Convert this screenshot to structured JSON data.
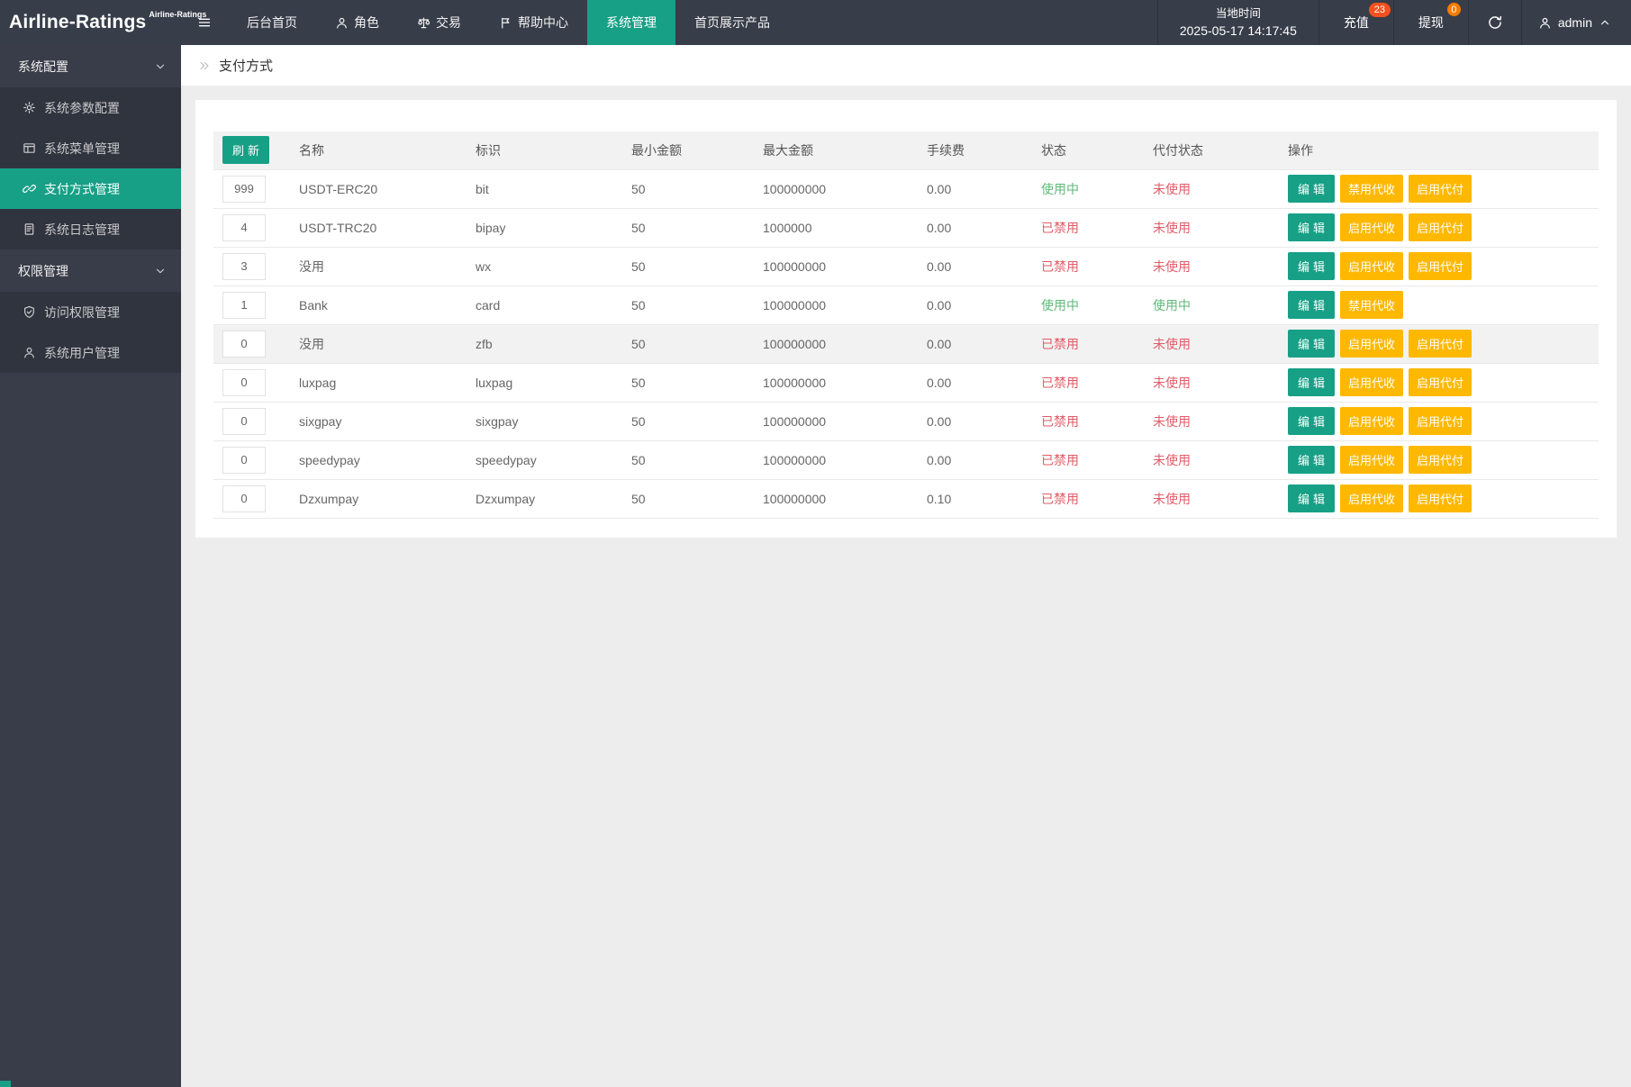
{
  "topbar": {
    "logo": "Airline-Ratings",
    "logo_super": "Airline-Ratings",
    "nav": [
      {
        "label": "后台首页",
        "icon": null,
        "active": false
      },
      {
        "label": "角色",
        "icon": "user-icon",
        "active": false
      },
      {
        "label": "交易",
        "icon": "scales-icon",
        "active": false
      },
      {
        "label": "帮助中心",
        "icon": "flag-icon",
        "active": false
      },
      {
        "label": "系统管理",
        "icon": null,
        "active": true
      },
      {
        "label": "首页展示产品",
        "icon": null,
        "active": false
      }
    ],
    "time_label": "当地时间",
    "time_value": "2025-05-17 14:17:45",
    "recharge_label": "充值",
    "recharge_badge": "23",
    "withdraw_label": "提现",
    "withdraw_badge": "0",
    "admin_name": "admin"
  },
  "sidebar": {
    "groups": [
      {
        "label": "系统配置",
        "items": [
          {
            "label": "系统参数配置",
            "icon": "gear-icon",
            "active": false
          },
          {
            "label": "系统菜单管理",
            "icon": "window-icon",
            "active": false
          },
          {
            "label": "支付方式管理",
            "icon": "link-icon",
            "active": true
          },
          {
            "label": "系统日志管理",
            "icon": "file-icon",
            "active": false
          }
        ]
      },
      {
        "label": "权限管理",
        "items": [
          {
            "label": "访问权限管理",
            "icon": "shield-icon",
            "active": false
          },
          {
            "label": "系统用户管理",
            "icon": "user-icon",
            "active": false
          }
        ]
      }
    ]
  },
  "breadcrumb": {
    "title": "支付方式"
  },
  "table": {
    "refresh_label": "刷新",
    "headers": [
      "名称",
      "标识",
      "最小金额",
      "最大金额",
      "手续费",
      "状态",
      "代付状态",
      "操作"
    ],
    "rows": [
      {
        "order": "999",
        "name": "USDT-ERC20",
        "code": "bit",
        "min": "50",
        "max": "100000000",
        "fee": "0.00",
        "status": {
          "text": "使用中",
          "state": "green"
        },
        "payout": {
          "text": "未使用",
          "state": "red"
        },
        "highlight": false,
        "actions": [
          {
            "key": "edit",
            "label": "编辑",
            "style": "teal"
          },
          {
            "key": "disable-collect",
            "label": "禁用代收",
            "style": "yellow"
          },
          {
            "key": "enable-payout",
            "label": "启用代付",
            "style": "yellow"
          }
        ]
      },
      {
        "order": "4",
        "name": "USDT-TRC20",
        "code": "bipay",
        "min": "50",
        "max": "1000000",
        "fee": "0.00",
        "status": {
          "text": "已禁用",
          "state": "red"
        },
        "payout": {
          "text": "未使用",
          "state": "red"
        },
        "highlight": false,
        "actions": [
          {
            "key": "edit",
            "label": "编辑",
            "style": "teal"
          },
          {
            "key": "enable-collect",
            "label": "启用代收",
            "style": "yellow"
          },
          {
            "key": "enable-payout",
            "label": "启用代付",
            "style": "yellow"
          }
        ]
      },
      {
        "order": "3",
        "name": "没用",
        "code": "wx",
        "min": "50",
        "max": "100000000",
        "fee": "0.00",
        "status": {
          "text": "已禁用",
          "state": "red"
        },
        "payout": {
          "text": "未使用",
          "state": "red"
        },
        "highlight": false,
        "actions": [
          {
            "key": "edit",
            "label": "编辑",
            "style": "teal"
          },
          {
            "key": "enable-collect",
            "label": "启用代收",
            "style": "yellow"
          },
          {
            "key": "enable-payout",
            "label": "启用代付",
            "style": "yellow"
          }
        ]
      },
      {
        "order": "1",
        "name": "Bank",
        "code": "card",
        "min": "50",
        "max": "100000000",
        "fee": "0.00",
        "status": {
          "text": "使用中",
          "state": "green"
        },
        "payout": {
          "text": "使用中",
          "state": "green"
        },
        "highlight": false,
        "actions": [
          {
            "key": "edit",
            "label": "编辑",
            "style": "teal"
          },
          {
            "key": "disable-collect",
            "label": "禁用代收",
            "style": "yellow"
          }
        ]
      },
      {
        "order": "0",
        "name": "没用",
        "code": "zfb",
        "min": "50",
        "max": "100000000",
        "fee": "0.00",
        "status": {
          "text": "已禁用",
          "state": "red"
        },
        "payout": {
          "text": "未使用",
          "state": "red"
        },
        "highlight": true,
        "actions": [
          {
            "key": "edit",
            "label": "编辑",
            "style": "teal"
          },
          {
            "key": "enable-collect",
            "label": "启用代收",
            "style": "yellow"
          },
          {
            "key": "enable-payout",
            "label": "启用代付",
            "style": "yellow"
          }
        ]
      },
      {
        "order": "0",
        "name": "luxpag",
        "code": "luxpag",
        "min": "50",
        "max": "100000000",
        "fee": "0.00",
        "status": {
          "text": "已禁用",
          "state": "red"
        },
        "payout": {
          "text": "未使用",
          "state": "red"
        },
        "highlight": false,
        "actions": [
          {
            "key": "edit",
            "label": "编辑",
            "style": "teal"
          },
          {
            "key": "enable-collect",
            "label": "启用代收",
            "style": "yellow"
          },
          {
            "key": "enable-payout",
            "label": "启用代付",
            "style": "yellow"
          }
        ]
      },
      {
        "order": "0",
        "name": "sixgpay",
        "code": "sixgpay",
        "min": "50",
        "max": "100000000",
        "fee": "0.00",
        "status": {
          "text": "已禁用",
          "state": "red"
        },
        "payout": {
          "text": "未使用",
          "state": "red"
        },
        "highlight": false,
        "actions": [
          {
            "key": "edit",
            "label": "编辑",
            "style": "teal"
          },
          {
            "key": "enable-collect",
            "label": "启用代收",
            "style": "yellow"
          },
          {
            "key": "enable-payout",
            "label": "启用代付",
            "style": "yellow"
          }
        ]
      },
      {
        "order": "0",
        "name": "speedypay",
        "code": "speedypay",
        "min": "50",
        "max": "100000000",
        "fee": "0.00",
        "status": {
          "text": "已禁用",
          "state": "red"
        },
        "payout": {
          "text": "未使用",
          "state": "red"
        },
        "highlight": false,
        "actions": [
          {
            "key": "edit",
            "label": "编辑",
            "style": "teal"
          },
          {
            "key": "enable-collect",
            "label": "启用代收",
            "style": "yellow"
          },
          {
            "key": "enable-payout",
            "label": "启用代付",
            "style": "yellow"
          }
        ]
      },
      {
        "order": "0",
        "name": "Dzxumpay",
        "code": "Dzxumpay",
        "min": "50",
        "max": "100000000",
        "fee": "0.10",
        "status": {
          "text": "已禁用",
          "state": "red"
        },
        "payout": {
          "text": "未使用",
          "state": "red"
        },
        "highlight": false,
        "actions": [
          {
            "key": "edit",
            "label": "编辑",
            "style": "teal"
          },
          {
            "key": "enable-collect",
            "label": "启用代收",
            "style": "yellow"
          },
          {
            "key": "enable-payout",
            "label": "启用代付",
            "style": "yellow"
          }
        ]
      }
    ]
  },
  "colors": {
    "accent_teal": "#17A086",
    "warning_yellow": "#FFB800",
    "danger_red": "#E25B66",
    "success_green": "#5FB878",
    "badge_recharge": "#F4511E",
    "badge_withdraw": "#F57C00",
    "topbar_bg": "#373D49",
    "sidebar_bg": "#393D49",
    "sidebar_item_bg": "#30343E",
    "content_bg": "#EDEDED"
  }
}
